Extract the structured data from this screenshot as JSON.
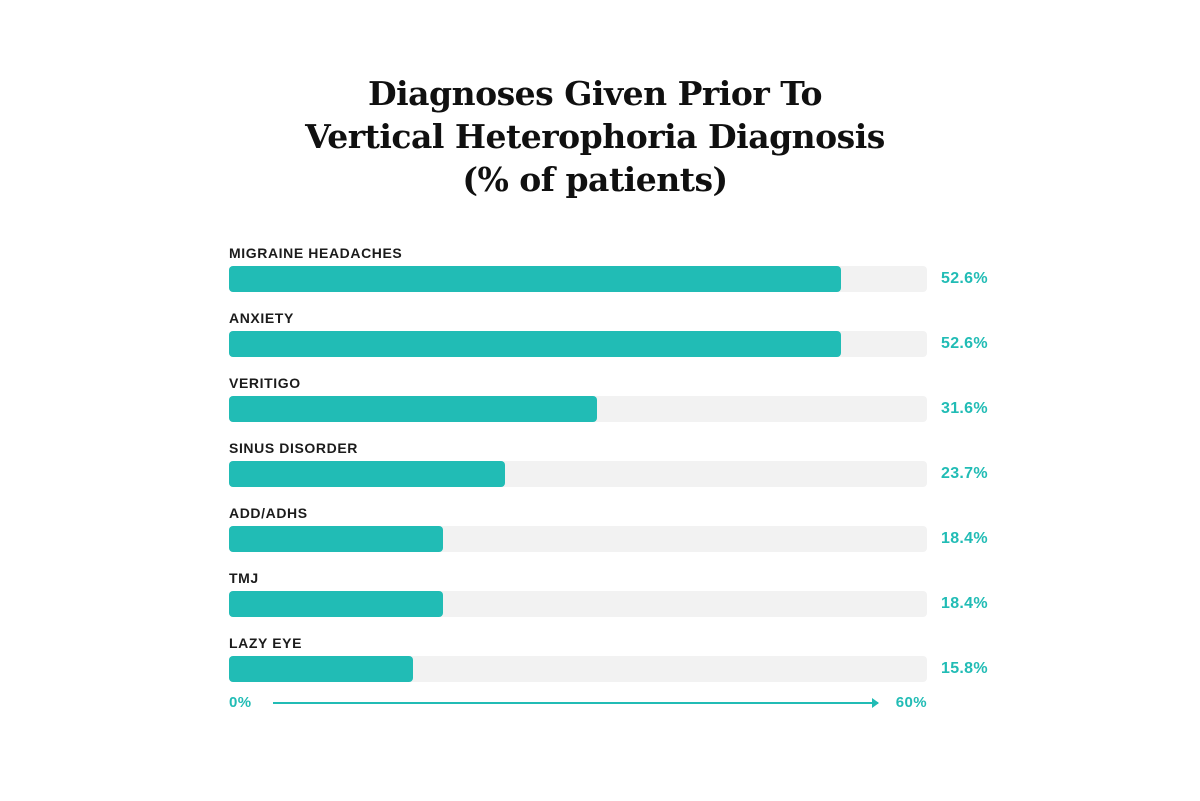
{
  "title": {
    "lines": [
      "Diagnoses Given Prior To",
      "Vertical Heterophoria Diagnosis",
      "(% of patients)"
    ]
  },
  "chart_data": {
    "type": "bar",
    "orientation": "horizontal",
    "title": "Diagnoses Given Prior To Vertical Heterophoria Diagnosis (% of patients)",
    "categories": [
      "MIGRAINE HEADACHES",
      "ANXIETY",
      "VERITIGO",
      "SINUS DISORDER",
      "ADD/ADHS",
      "TMJ",
      "LAZY EYE"
    ],
    "values": [
      52.6,
      52.6,
      31.6,
      23.7,
      18.4,
      18.4,
      15.8
    ],
    "value_labels": [
      "52.6%",
      "52.6%",
      "31.6%",
      "23.7%",
      "18.4%",
      "18.4%",
      "15.8%"
    ],
    "xlim": [
      0,
      60
    ],
    "axis": {
      "min_label": "0%",
      "max_label": "60%"
    },
    "grid": false,
    "legend": false,
    "colors": {
      "bar": "#21bcb5",
      "track": "#f2f2f2",
      "value_text": "#21bcb5",
      "label_text": "#1b1b1b",
      "title_text": "#101010"
    }
  }
}
